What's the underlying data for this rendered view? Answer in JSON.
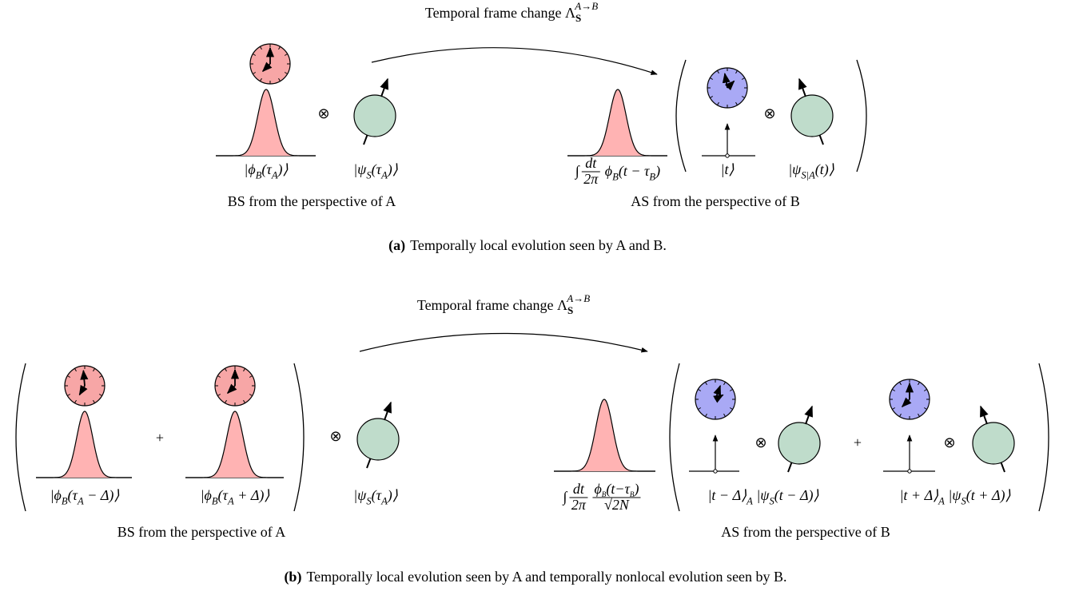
{
  "tensor": "⊗",
  "plus": "+",
  "panels": [
    {
      "frame_change": {
        "text": "Temporal frame change Λ",
        "sub": "S",
        "sup": "A→B"
      },
      "left": {
        "labels": [
          [
            "|ϕ",
            "B",
            "(τ",
            "A",
            ")⟩"
          ],
          [
            "|ψ",
            "S",
            "(τ",
            "A",
            ")⟩"
          ]
        ],
        "perspective": "BS from the perspective of A"
      },
      "right": {
        "integral": {
          "sign": "∫",
          "num": "dt",
          "den": "2π",
          "body": [
            "ϕ",
            "B",
            "(t − τ",
            "B",
            ")"
          ]
        },
        "labels": [
          [
            "|t⟩"
          ],
          [
            "|ψ",
            "S|A",
            "(t)⟩"
          ]
        ],
        "perspective": "AS from the perspective of B"
      },
      "caption": {
        "tag": "(a)",
        "text": "Temporally local evolution seen by A and B."
      }
    },
    {
      "frame_change": {
        "text": "Temporal frame change Λ",
        "sub": "S",
        "sup": "A→B"
      },
      "left": {
        "labels": [
          [
            "|ϕ",
            "B",
            "(τ",
            "A",
            " − Δ)⟩"
          ],
          [
            "|ϕ",
            "B",
            "(τ",
            "A",
            " + Δ)⟩"
          ],
          [
            "|ψ",
            "S",
            "(τ",
            "A",
            ")⟩"
          ]
        ],
        "perspective": "BS from the perspective of A"
      },
      "right": {
        "integral": {
          "sign": "∫",
          "num": "dt",
          "den": "2π",
          "body_num": [
            "ϕ",
            "B",
            "(t−τ",
            "B",
            ")"
          ],
          "body_den": [
            "√2N"
          ]
        },
        "labels": [
          [
            "|t − Δ⟩",
            "A",
            " |ψ",
            "S",
            "(t − Δ)⟩"
          ],
          [
            "|t + Δ⟩",
            "A",
            " |ψ",
            "S",
            "(t + Δ)⟩"
          ]
        ],
        "perspective": "AS from the perspective of B"
      },
      "caption": {
        "tag": "(b)",
        "text": "Temporally local evolution seen by A and temporally nonlocal evolution seen by B."
      }
    }
  ]
}
